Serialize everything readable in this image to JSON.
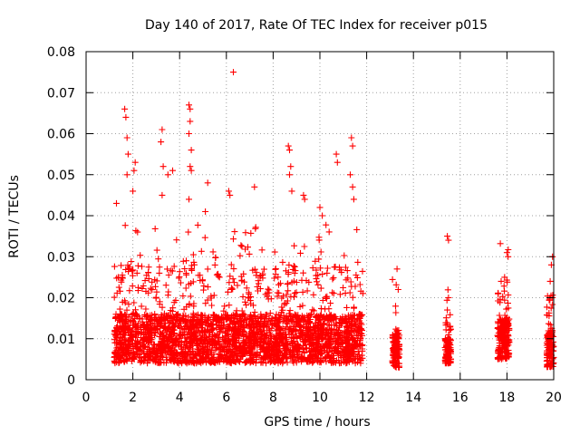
{
  "chart_data": {
    "type": "scatter",
    "title": "Day 140 of 2017, Rate Of TEC Index for receiver p015",
    "xlabel": "GPS time / hours",
    "ylabel": "ROTI / TECUs",
    "xlim": [
      0,
      20
    ],
    "ylim": [
      0,
      0.08
    ],
    "x_ticks": [
      0,
      2,
      4,
      6,
      8,
      10,
      12,
      14,
      16,
      18,
      20
    ],
    "x_tick_labels": [
      "0",
      "2",
      "4",
      "6",
      "8",
      "10",
      "12",
      "14",
      "16",
      "18",
      "20"
    ],
    "y_ticks": [
      0,
      0.01,
      0.02,
      0.03,
      0.04,
      0.05,
      0.06,
      0.07,
      0.08
    ],
    "y_tick_labels": [
      "0",
      "0.01",
      "0.02",
      "0.03",
      "0.04",
      "0.05",
      "0.06",
      "0.07",
      "0.08"
    ],
    "grid": true,
    "marker": "+",
    "marker_color": "#ff0000",
    "series": [
      {
        "name": "ROTI",
        "segments": [
          {
            "x_start": 1.2,
            "x_end": 11.85,
            "typical_min": 0.004,
            "typical_max": 0.02
          },
          {
            "x_start": 13.1,
            "x_end": 13.4,
            "typical_min": 0.003,
            "typical_max": 0.014
          },
          {
            "x_start": 15.35,
            "x_end": 15.6,
            "typical_min": 0.004,
            "typical_max": 0.012
          },
          {
            "x_start": 17.6,
            "x_end": 18.1,
            "typical_min": 0.005,
            "typical_max": 0.018
          },
          {
            "x_start": 19.7,
            "x_end": 20.0,
            "typical_min": 0.003,
            "typical_max": 0.015
          }
        ],
        "peaks": [
          {
            "x": 1.3,
            "y": 0.043
          },
          {
            "x": 1.65,
            "y": 0.066
          },
          {
            "x": 1.7,
            "y": 0.064
          },
          {
            "x": 1.75,
            "y": 0.059
          },
          {
            "x": 1.8,
            "y": 0.055
          },
          {
            "x": 1.75,
            "y": 0.05
          },
          {
            "x": 2.05,
            "y": 0.051
          },
          {
            "x": 2.1,
            "y": 0.053
          },
          {
            "x": 2.0,
            "y": 0.046
          },
          {
            "x": 2.2,
            "y": 0.036
          },
          {
            "x": 3.25,
            "y": 0.061
          },
          {
            "x": 3.2,
            "y": 0.058
          },
          {
            "x": 3.3,
            "y": 0.052
          },
          {
            "x": 3.25,
            "y": 0.045
          },
          {
            "x": 3.5,
            "y": 0.05
          },
          {
            "x": 3.7,
            "y": 0.051
          },
          {
            "x": 4.4,
            "y": 0.067
          },
          {
            "x": 4.45,
            "y": 0.066
          },
          {
            "x": 4.45,
            "y": 0.063
          },
          {
            "x": 4.4,
            "y": 0.06
          },
          {
            "x": 4.5,
            "y": 0.056
          },
          {
            "x": 4.45,
            "y": 0.052
          },
          {
            "x": 4.5,
            "y": 0.051
          },
          {
            "x": 4.4,
            "y": 0.044
          },
          {
            "x": 5.2,
            "y": 0.048
          },
          {
            "x": 5.1,
            "y": 0.041
          },
          {
            "x": 6.3,
            "y": 0.075
          },
          {
            "x": 6.1,
            "y": 0.046
          },
          {
            "x": 6.15,
            "y": 0.045
          },
          {
            "x": 7.2,
            "y": 0.047
          },
          {
            "x": 8.65,
            "y": 0.057
          },
          {
            "x": 8.7,
            "y": 0.056
          },
          {
            "x": 8.75,
            "y": 0.052
          },
          {
            "x": 8.7,
            "y": 0.05
          },
          {
            "x": 8.8,
            "y": 0.046
          },
          {
            "x": 9.3,
            "y": 0.045
          },
          {
            "x": 9.35,
            "y": 0.044
          },
          {
            "x": 10.0,
            "y": 0.042
          },
          {
            "x": 10.1,
            "y": 0.04
          },
          {
            "x": 10.7,
            "y": 0.055
          },
          {
            "x": 10.75,
            "y": 0.053
          },
          {
            "x": 11.35,
            "y": 0.059
          },
          {
            "x": 11.4,
            "y": 0.057
          },
          {
            "x": 11.3,
            "y": 0.05
          },
          {
            "x": 11.4,
            "y": 0.047
          },
          {
            "x": 11.45,
            "y": 0.044
          },
          {
            "x": 13.3,
            "y": 0.027
          },
          {
            "x": 13.35,
            "y": 0.022
          },
          {
            "x": 15.45,
            "y": 0.035
          },
          {
            "x": 15.5,
            "y": 0.034
          },
          {
            "x": 15.5,
            "y": 0.02
          },
          {
            "x": 15.45,
            "y": 0.017
          },
          {
            "x": 18.0,
            "y": 0.031
          },
          {
            "x": 18.05,
            "y": 0.03
          },
          {
            "x": 17.9,
            "y": 0.025
          },
          {
            "x": 17.75,
            "y": 0.024
          },
          {
            "x": 19.95,
            "y": 0.03
          },
          {
            "x": 19.9,
            "y": 0.028
          },
          {
            "x": 19.85,
            "y": 0.024
          },
          {
            "x": 19.95,
            "y": 0.02
          }
        ]
      }
    ]
  }
}
